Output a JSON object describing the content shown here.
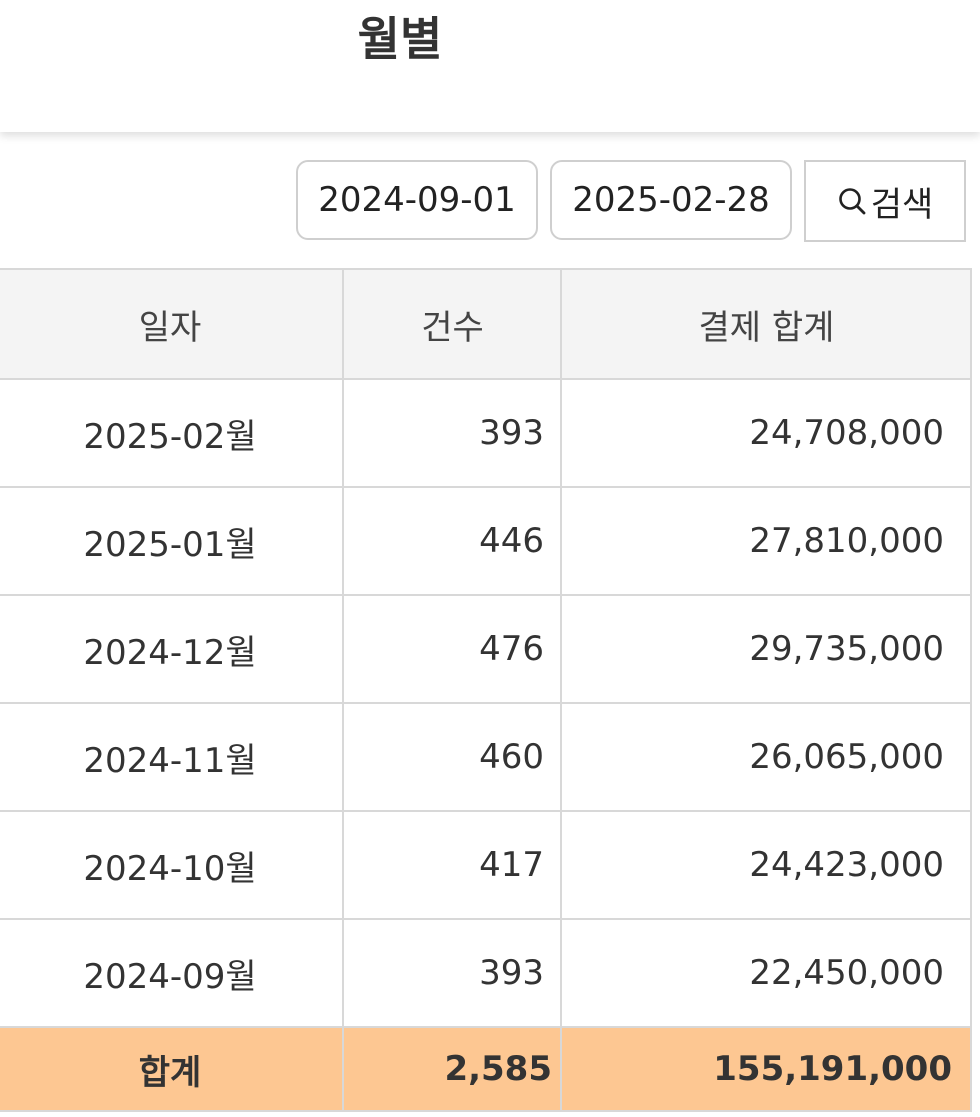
{
  "header": {
    "title": "월별"
  },
  "filters": {
    "start_date": "2024-09-01",
    "end_date": "2025-02-28",
    "search_label": "검색",
    "search_icon": "search-icon"
  },
  "table": {
    "headers": {
      "date": "일자",
      "count": "건수",
      "amount": "결제 합계"
    },
    "rows": [
      {
        "date": "2025-02월",
        "count": "393",
        "amount": "24,708,000"
      },
      {
        "date": "2025-01월",
        "count": "446",
        "amount": "27,810,000"
      },
      {
        "date": "2024-12월",
        "count": "476",
        "amount": "29,735,000"
      },
      {
        "date": "2024-11월",
        "count": "460",
        "amount": "26,065,000"
      },
      {
        "date": "2024-10월",
        "count": "417",
        "amount": "24,423,000"
      },
      {
        "date": "2024-09월",
        "count": "393",
        "amount": "22,450,000"
      }
    ],
    "total": {
      "label": "합계",
      "count": "2,585",
      "amount": "155,191,000"
    }
  },
  "colors": {
    "total_row_bg": "#fdc792",
    "header_bg": "#f4f4f4"
  }
}
